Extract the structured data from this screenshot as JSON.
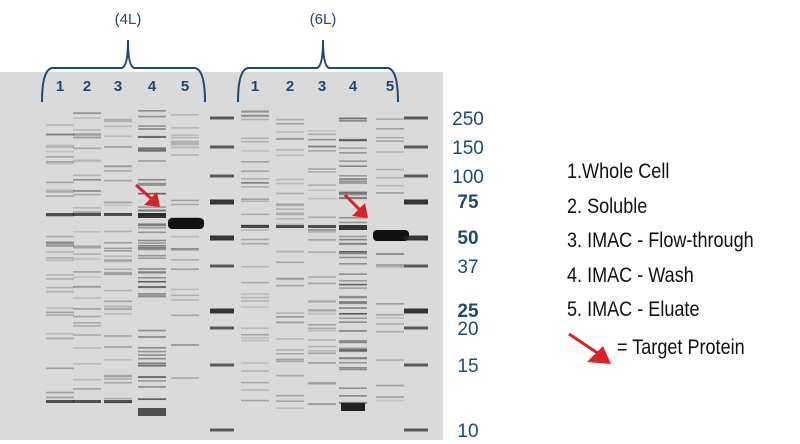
{
  "groups": [
    {
      "label": "(4L)",
      "lanes": [
        "1",
        "2",
        "3",
        "4",
        "5"
      ]
    },
    {
      "label": "(6L)",
      "lanes": [
        "1",
        "2",
        "3",
        "4",
        "5"
      ]
    }
  ],
  "markers": [
    {
      "label": "250",
      "kda": 250,
      "bold": false
    },
    {
      "label": "150",
      "kda": 150,
      "bold": false
    },
    {
      "label": "100",
      "kda": 100,
      "bold": false
    },
    {
      "label": "75",
      "kda": 75,
      "bold": true
    },
    {
      "label": "50",
      "kda": 50,
      "bold": true
    },
    {
      "label": "37",
      "kda": 37,
      "bold": false
    },
    {
      "label": "25",
      "kda": 25,
      "bold": true
    },
    {
      "label": "20",
      "kda": 20,
      "bold": false
    },
    {
      "label": "15",
      "kda": 15,
      "bold": false
    },
    {
      "label": "10",
      "kda": 10,
      "bold": false
    }
  ],
  "legend": {
    "items": [
      "1.Whole Cell",
      "2. Soluble",
      "3. IMAC - Flow-through",
      "4. IMAC - Wash",
      "5. IMAC - Eluate"
    ],
    "target_label": "= Target Protein"
  },
  "colors": {
    "label": "#1f4a6e",
    "arrow": "#d8232a",
    "gel": "#dcdcdc",
    "band": "#1a1a1a"
  }
}
